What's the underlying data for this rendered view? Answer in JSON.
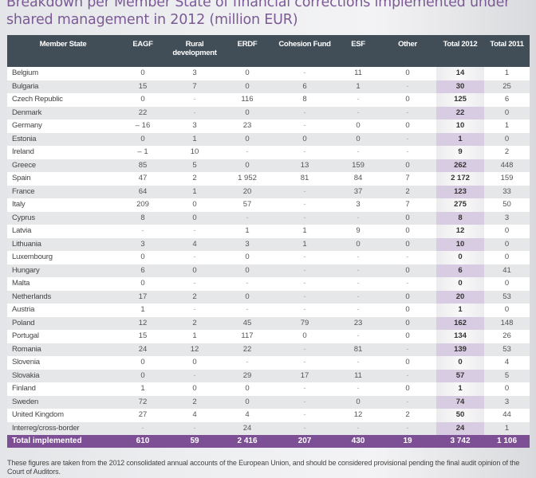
{
  "title": "Breakdown per Member State of financial corrections implemented under shared management in 2012 (million EUR)",
  "table": {
    "headers": [
      "Member State",
      "EAGF",
      "Rural development",
      "ERDF",
      "Cohesion Fund",
      "ESF",
      "Other",
      "Total 2012",
      "Total 2011"
    ],
    "rows": [
      [
        "Belgium",
        "0",
        "3",
        "0",
        "-",
        "11",
        "0",
        "14",
        "1"
      ],
      [
        "Bulgaria",
        "15",
        "7",
        "0",
        "6",
        "1",
        "-",
        "30",
        "25"
      ],
      [
        "Czech Republic",
        "0",
        "-",
        "116",
        "8",
        "-",
        "0",
        "125",
        "6"
      ],
      [
        "Denmark",
        "22",
        "-",
        "0",
        "-",
        "-",
        "-",
        "22",
        "0"
      ],
      [
        "Germany",
        "– 16",
        "3",
        "23",
        "-",
        "0",
        "0",
        "10",
        "1"
      ],
      [
        "Estonia",
        "0",
        "1",
        "0",
        "0",
        "0",
        "-",
        "1",
        "0"
      ],
      [
        "Ireland",
        "– 1",
        "10",
        "-",
        "-",
        "-",
        "-",
        "9",
        "2"
      ],
      [
        "Greece",
        "85",
        "5",
        "0",
        "13",
        "159",
        "0",
        "262",
        "448"
      ],
      [
        "Spain",
        "47",
        "2",
        "1 952",
        "81",
        "84",
        "7",
        "2 172",
        "159"
      ],
      [
        "France",
        "64",
        "1",
        "20",
        "-",
        "37",
        "2",
        "123",
        "33"
      ],
      [
        "Italy",
        "209",
        "0",
        "57",
        "-",
        "3",
        "7",
        "275",
        "50"
      ],
      [
        "Cyprus",
        "8",
        "0",
        "-",
        "-",
        "-",
        "0",
        "8",
        "3"
      ],
      [
        "Latvia",
        "-",
        "-",
        "1",
        "1",
        "9",
        "0",
        "12",
        "0"
      ],
      [
        "Lithuania",
        "3",
        "4",
        "3",
        "1",
        "0",
        "0",
        "10",
        "0"
      ],
      [
        "Luxembourg",
        "0",
        "-",
        "0",
        "-",
        "-",
        "-",
        "0",
        "0"
      ],
      [
        "Hungary",
        "6",
        "0",
        "0",
        "-",
        "-",
        "0",
        "6",
        "41"
      ],
      [
        "Malta",
        "0",
        "-",
        "-",
        "-",
        "-",
        "-",
        "0",
        "0"
      ],
      [
        "Netherlands",
        "17",
        "2",
        "0",
        "-",
        "-",
        "0",
        "20",
        "53"
      ],
      [
        "Austria",
        "1",
        "-",
        "-",
        "-",
        "-",
        "0",
        "1",
        "0"
      ],
      [
        "Poland",
        "12",
        "2",
        "45",
        "79",
        "23",
        "0",
        "162",
        "148"
      ],
      [
        "Portugal",
        "15",
        "1",
        "117",
        "0",
        "-",
        "0",
        "134",
        "26"
      ],
      [
        "Romania",
        "24",
        "12",
        "22",
        "-",
        "81",
        "-",
        "139",
        "53"
      ],
      [
        "Slovenia",
        "0",
        "0",
        "-",
        "-",
        "-",
        "0",
        "0",
        "4"
      ],
      [
        "Slovakia",
        "0",
        "-",
        "29",
        "17",
        "11",
        "-",
        "57",
        "5"
      ],
      [
        "Finland",
        "1",
        "0",
        "0",
        "-",
        "-",
        "0",
        "1",
        "0"
      ],
      [
        "Sweden",
        "72",
        "2",
        "0",
        "-",
        "0",
        "-",
        "74",
        "3"
      ],
      [
        "United Kingdom",
        "27",
        "4",
        "4",
        "-",
        "12",
        "2",
        "50",
        "44"
      ],
      [
        "Interreg/cross-border",
        "-",
        "-",
        "24",
        "-",
        "-",
        "-",
        "24",
        "1"
      ]
    ],
    "total": [
      "Total implemented",
      "610",
      "59",
      "2 416",
      "207",
      "430",
      "19",
      "3 742",
      "1 106"
    ]
  },
  "note": "These figures are taken from the 2012 consolidated annual accounts of the European Union, and should be considered provisional pending the final audit opinion of the Court of Auditors.",
  "colors": {
    "title": "#7c5a95",
    "header_bg": "#414d57",
    "total_bg": "#7d4f95",
    "highlight_col": "#d8cce3",
    "row_alt": "#e6e7e9"
  }
}
